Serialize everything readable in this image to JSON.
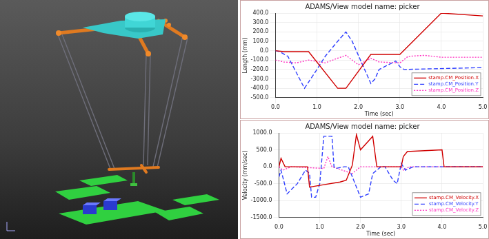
{
  "chart_data": [
    {
      "type": "line",
      "title": "ADAMS/View model name: picker",
      "x_label": "Time (sec)",
      "y_label": "Length (mm)",
      "xlim": [
        0,
        5
      ],
      "xticks": [
        {
          "value": 0,
          "label": "0.0"
        },
        {
          "value": 1,
          "label": "1.0"
        },
        {
          "value": 2,
          "label": "2.0"
        },
        {
          "value": 3,
          "label": "3.0"
        },
        {
          "value": 4,
          "label": "4.0"
        },
        {
          "value": 5,
          "label": "5.0"
        }
      ],
      "ylim": [
        -500,
        400
      ],
      "yticks": [
        {
          "value": -500,
          "label": "-500.0"
        },
        {
          "value": -400,
          "label": "-400.0"
        },
        {
          "value": -300,
          "label": "-300.0"
        },
        {
          "value": -200,
          "label": "-200.0"
        },
        {
          "value": -100,
          "label": "-100.0"
        },
        {
          "value": 0,
          "label": "0.0"
        },
        {
          "value": 100,
          "label": "100.0"
        },
        {
          "value": 200,
          "label": "200.0"
        },
        {
          "value": 300,
          "label": "300.0"
        },
        {
          "value": 400,
          "label": "400.0"
        }
      ],
      "grid": true,
      "legend": "lower right",
      "series": [
        {
          "name": "stamp.CM_Position.X",
          "color": "#d00000",
          "line_style": "solid",
          "x": [
            0,
            0.2,
            0.8,
            1.5,
            1.7,
            2.3,
            3.0,
            4.0,
            5.0
          ],
          "values": [
            0,
            -10,
            -10,
            -400,
            -400,
            -40,
            -40,
            400,
            370
          ]
        },
        {
          "name": "stamp.CM_Position.Y",
          "color": "#3040ff",
          "line_style": "dashed",
          "x": [
            0,
            0.1,
            0.3,
            0.7,
            0.85,
            1.0,
            1.2,
            1.5,
            1.7,
            1.85,
            2.1,
            2.3,
            2.4,
            2.5,
            2.9,
            3.0,
            3.1,
            5.0
          ],
          "values": [
            0,
            -10,
            -60,
            -400,
            -300,
            -200,
            -60,
            100,
            200,
            100,
            -150,
            -350,
            -300,
            -200,
            -110,
            -170,
            -200,
            -180
          ]
        },
        {
          "name": "stamp.CM_Position.Z",
          "color": "#ff30c0",
          "line_style": "dotted",
          "x": [
            0,
            0.2,
            0.5,
            0.8,
            1.2,
            1.5,
            1.7,
            2.0,
            2.3,
            2.5,
            3.0,
            3.2,
            3.6,
            4.0,
            5.0
          ],
          "values": [
            -100,
            -120,
            -130,
            -100,
            -130,
            -80,
            -50,
            -150,
            -80,
            -120,
            -130,
            -60,
            -50,
            -70,
            -70
          ]
        }
      ]
    },
    {
      "type": "line",
      "title": "ADAMS/View model name: picker",
      "x_label": "Time (sec)",
      "y_label": "Velocity (mm/sec)",
      "xlim": [
        0,
        5
      ],
      "xticks": [
        {
          "value": 0,
          "label": "0.0"
        },
        {
          "value": 1,
          "label": "1.0"
        },
        {
          "value": 2,
          "label": "2.0"
        },
        {
          "value": 3,
          "label": "3.0"
        },
        {
          "value": 4,
          "label": "4.0"
        },
        {
          "value": 5,
          "label": "5.0"
        }
      ],
      "ylim": [
        -1500,
        1000
      ],
      "yticks": [
        {
          "value": -1500,
          "label": "-1500.0"
        },
        {
          "value": -1000,
          "label": "-1000.0"
        },
        {
          "value": -500,
          "label": "-500.0"
        },
        {
          "value": 0,
          "label": "0.0"
        },
        {
          "value": 500,
          "label": "500.0"
        },
        {
          "value": 1000,
          "label": "1000.0"
        }
      ],
      "grid": true,
      "legend": "lower right",
      "series": [
        {
          "name": "stamp.CM_Velocity.X",
          "color": "#d00000",
          "line_style": "solid",
          "x": [
            0,
            0.05,
            0.15,
            0.7,
            0.75,
            1.0,
            1.5,
            1.65,
            1.8,
            1.9,
            2.0,
            2.3,
            2.4,
            3.0,
            3.05,
            3.15,
            4.0,
            4.05,
            5.0
          ],
          "values": [
            0,
            250,
            0,
            0,
            -600,
            -550,
            -450,
            -400,
            50,
            950,
            500,
            900,
            0,
            0,
            300,
            450,
            500,
            0,
            0
          ]
        },
        {
          "name": "stamp.CM_Velocity.Y",
          "color": "#3040ff",
          "line_style": "dashed",
          "x": [
            0,
            0.05,
            0.2,
            0.45,
            0.65,
            0.75,
            0.8,
            0.9,
            1.0,
            1.1,
            1.3,
            1.35,
            1.4,
            1.6,
            1.7,
            1.8,
            2.0,
            2.2,
            2.3,
            2.5,
            2.6,
            2.8,
            2.9,
            3.0,
            3.1,
            3.3,
            5.0
          ],
          "values": [
            -300,
            -100,
            -800,
            -500,
            -100,
            -200,
            -900,
            -900,
            -500,
            900,
            900,
            0,
            -50,
            0,
            0,
            -300,
            -900,
            -800,
            -200,
            0,
            0,
            -400,
            -500,
            100,
            -100,
            0,
            0
          ]
        },
        {
          "name": "stamp.CM_Velocity.Z",
          "color": "#ff30c0",
          "line_style": "dotted",
          "x": [
            0,
            0.1,
            0.3,
            1.1,
            1.2,
            1.3,
            1.8,
            2.0,
            3.0,
            3.05,
            3.2,
            5.0
          ],
          "values": [
            0,
            -100,
            0,
            -50,
            300,
            0,
            -200,
            0,
            0,
            -100,
            0,
            0
          ]
        }
      ]
    }
  ]
}
